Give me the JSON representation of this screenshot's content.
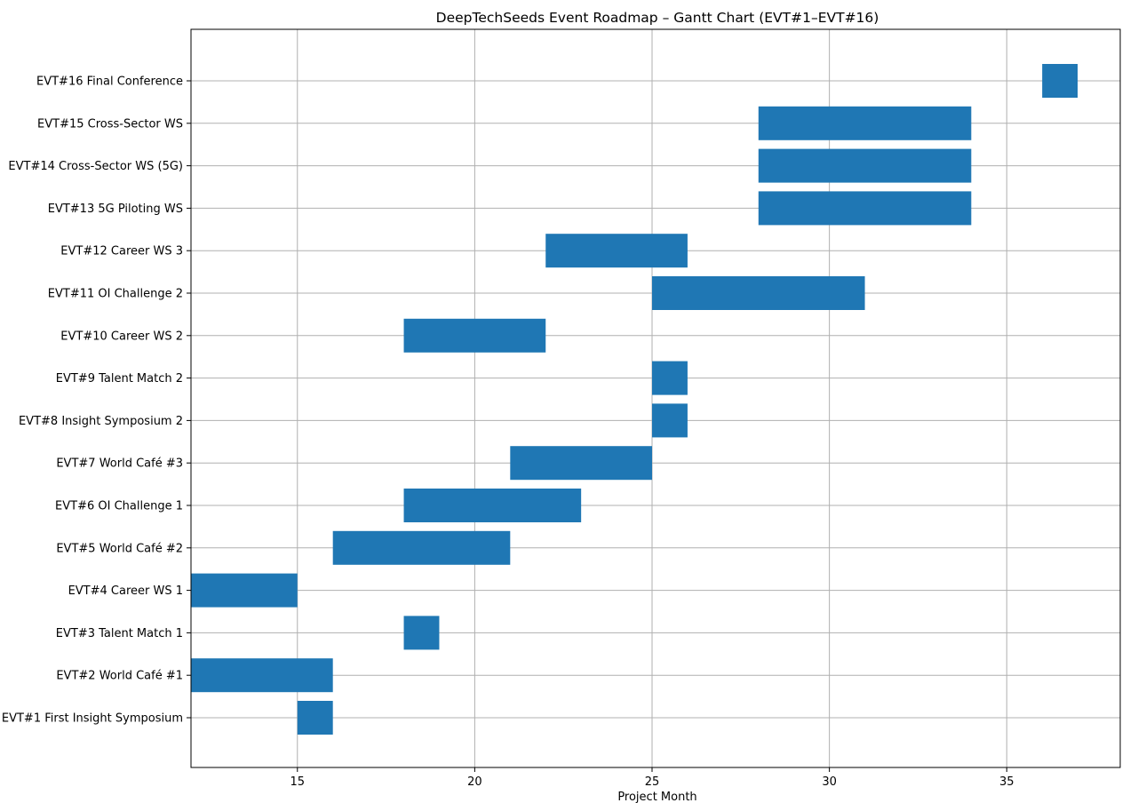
{
  "chart_data": {
    "type": "bar",
    "orientation": "horizontal",
    "subtype": "gantt",
    "title": "DeepTechSeeds Event Roadmap – Gantt Chart (EVT#1–EVT#16)",
    "xlabel": "Project Month",
    "ylabel": "",
    "xlim": [
      12,
      38.2
    ],
    "xticks": [
      15,
      20,
      25,
      30,
      35
    ],
    "grid": true,
    "bar_color": "#1f77b4",
    "tasks": [
      {
        "label": "EVT#1 First Insight Symposium",
        "start": 15,
        "end": 16
      },
      {
        "label": "EVT#2 World Café #1",
        "start": 12,
        "end": 16
      },
      {
        "label": "EVT#3 Talent Match 1",
        "start": 18,
        "end": 19
      },
      {
        "label": "EVT#4 Career WS 1",
        "start": 12,
        "end": 15
      },
      {
        "label": "EVT#5 World Café #2",
        "start": 16,
        "end": 21
      },
      {
        "label": "EVT#6 OI Challenge 1",
        "start": 18,
        "end": 23
      },
      {
        "label": "EVT#7 World Café #3",
        "start": 21,
        "end": 25
      },
      {
        "label": "EVT#8 Insight Symposium 2",
        "start": 25,
        "end": 26
      },
      {
        "label": "EVT#9 Talent Match 2",
        "start": 25,
        "end": 26
      },
      {
        "label": "EVT#10 Career WS 2",
        "start": 18,
        "end": 22
      },
      {
        "label": "EVT#11 OI Challenge 2",
        "start": 25,
        "end": 31
      },
      {
        "label": "EVT#12 Career WS 3",
        "start": 22,
        "end": 26
      },
      {
        "label": "EVT#13 5G Piloting WS",
        "start": 28,
        "end": 34
      },
      {
        "label": "EVT#14 Cross-Sector WS (5G)",
        "start": 28,
        "end": 34
      },
      {
        "label": "EVT#15 Cross-Sector WS",
        "start": 28,
        "end": 34
      },
      {
        "label": "EVT#16 Final Conference",
        "start": 36,
        "end": 37
      }
    ]
  }
}
